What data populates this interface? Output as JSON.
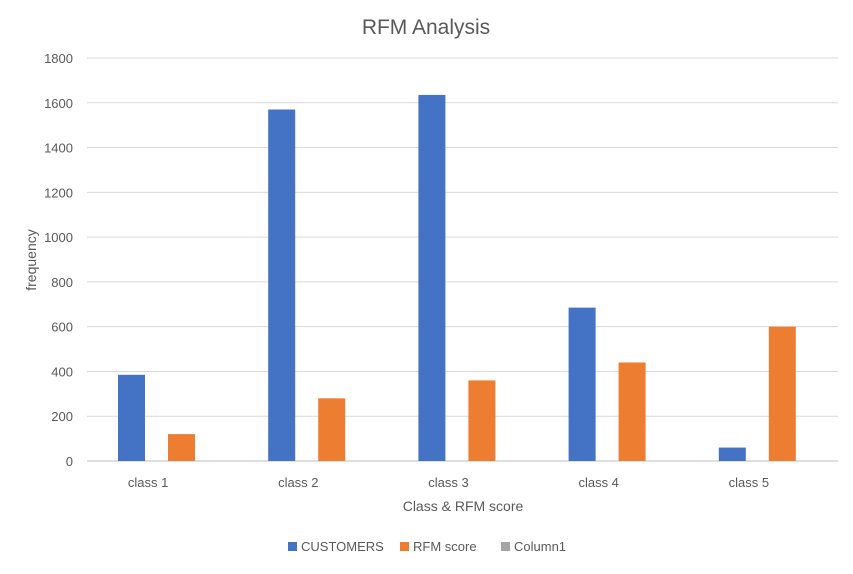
{
  "chart_data": {
    "type": "bar",
    "title": "RFM Analysis",
    "xlabel": "Class & RFM score",
    "ylabel": "frequency",
    "categories": [
      "class 1",
      "class 2",
      "class 3",
      "class 4",
      "class 5"
    ],
    "series": [
      {
        "name": "CUSTOMERS",
        "color": "#4472C4",
        "values": [
          385,
          1570,
          1635,
          685,
          60
        ]
      },
      {
        "name": "RFM score",
        "color": "#ED7D31",
        "values": [
          120,
          280,
          360,
          440,
          600
        ]
      },
      {
        "name": "Column1",
        "color": "#A5A5A5",
        "values": [
          0,
          0,
          0,
          0,
          0
        ]
      }
    ],
    "ylim": [
      0,
      1800
    ],
    "yticks": [
      0,
      200,
      400,
      600,
      800,
      1000,
      1200,
      1400,
      1600,
      1800
    ],
    "grid": true,
    "legend_position": "bottom"
  }
}
